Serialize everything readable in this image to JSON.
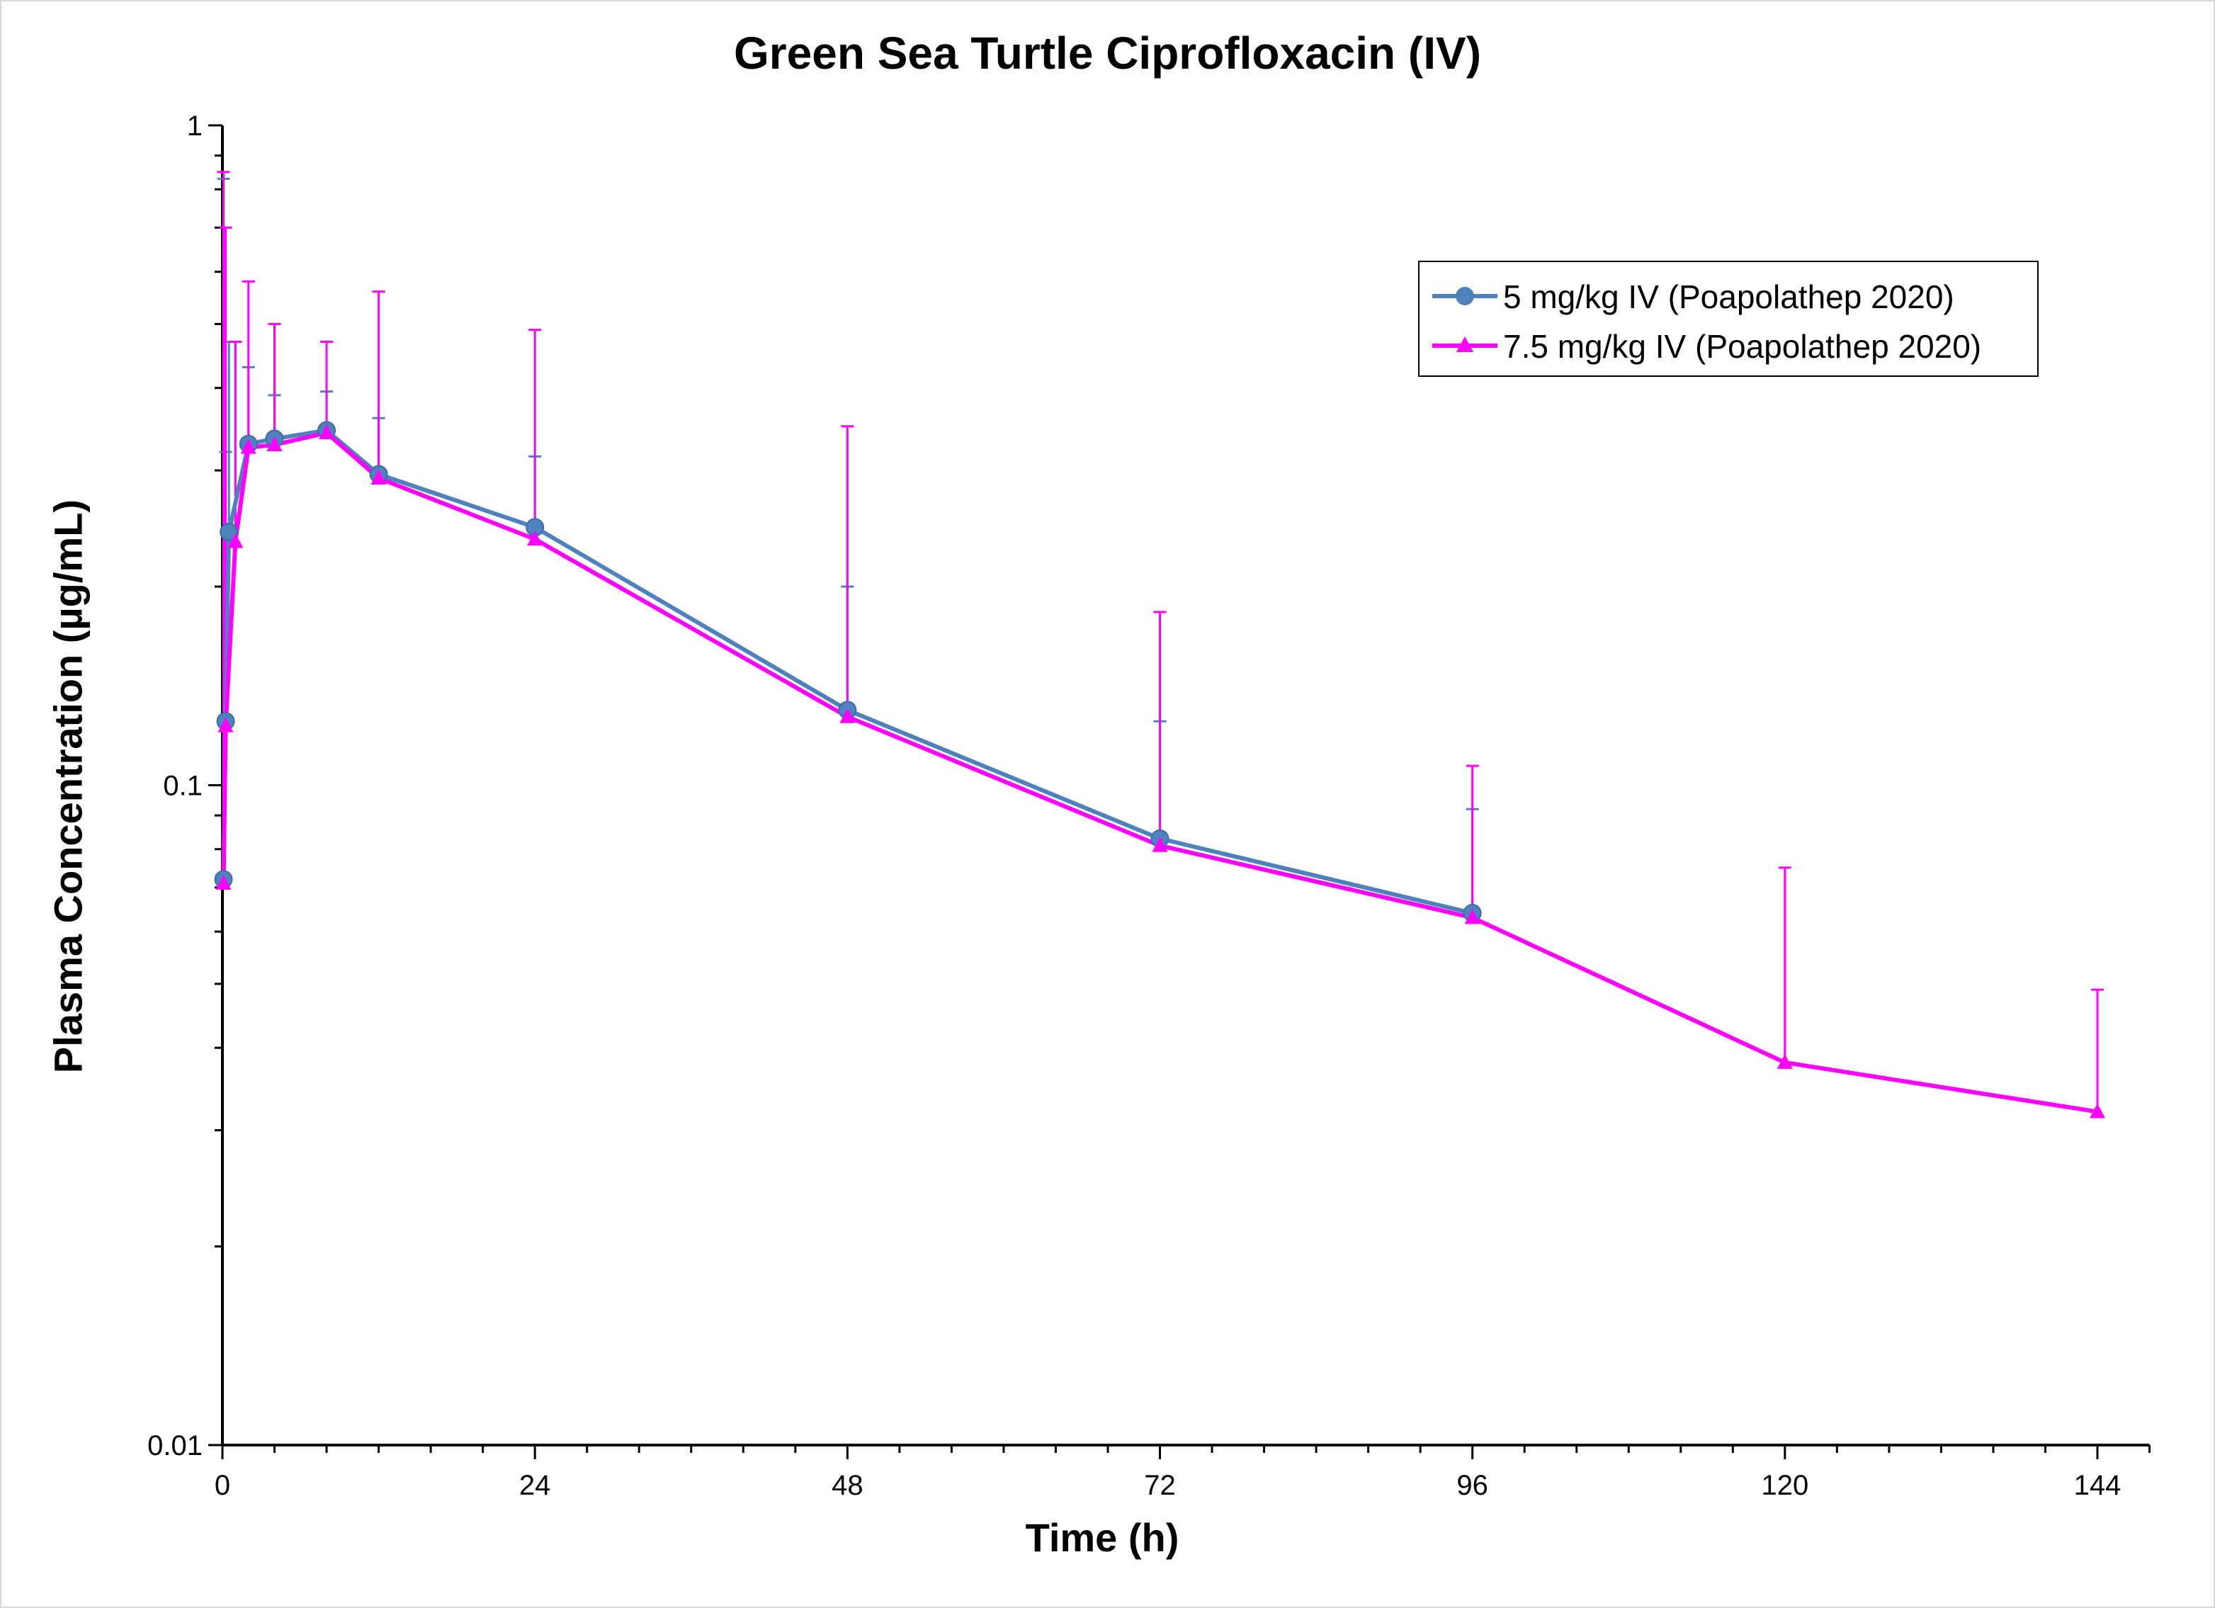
{
  "chart_data": {
    "type": "line",
    "title": "Green Sea Turtle Ciprofloxacin (IV)",
    "xlabel": "Time (h)",
    "ylabel": "Plasma Concentration (µg/mL)",
    "xlim": [
      0,
      148
    ],
    "ylim": [
      0.01,
      1
    ],
    "y_scale": "log",
    "x_ticks": [
      0,
      24,
      48,
      72,
      96,
      120,
      144
    ],
    "x_tick_labels": [
      "0",
      "24",
      "48",
      "72",
      "96",
      "120",
      "144"
    ],
    "y_ticks": [
      0.01,
      0.1,
      1
    ],
    "y_tick_labels": [
      "0.01",
      "0.1",
      "1"
    ],
    "grid": false,
    "legend_position": "top-right",
    "series": [
      {
        "name": "5 mg/kg IV (Poapolathep 2020)",
        "color": "#4F81BD",
        "marker": "circle",
        "x": [
          0.083,
          0.25,
          0.5,
          2,
          4,
          8,
          12,
          24,
          48,
          72,
          96
        ],
        "y": [
          0.072,
          0.125,
          0.242,
          0.329,
          0.335,
          0.345,
          0.296,
          0.246,
          0.13,
          0.083,
          0.064
        ],
        "error_upper": [
          0.83,
          0.32,
          0.47,
          0.43,
          0.39,
          0.395,
          0.36,
          0.315,
          0.2,
          0.125,
          0.092
        ]
      },
      {
        "name": "7.5 mg/kg IV (Poapolathep 2020)",
        "color": "#FF00FF",
        "marker": "triangle",
        "x": [
          0.083,
          0.25,
          1,
          2,
          4,
          8,
          12,
          24,
          48,
          72,
          96,
          120,
          144
        ],
        "y": [
          0.071,
          0.123,
          0.234,
          0.325,
          0.328,
          0.342,
          0.292,
          0.236,
          0.127,
          0.081,
          0.063,
          0.038,
          0.032
        ],
        "error_upper": [
          0.85,
          0.7,
          0.47,
          0.58,
          0.5,
          0.47,
          0.56,
          0.49,
          0.35,
          0.183,
          0.107,
          0.075,
          0.049
        ]
      }
    ]
  }
}
